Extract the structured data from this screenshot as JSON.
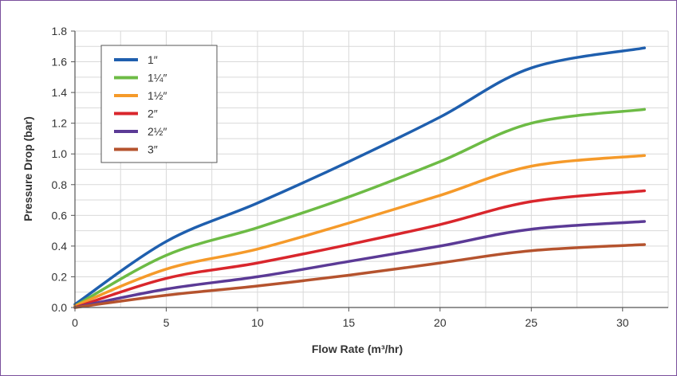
{
  "chart_data": {
    "type": "line",
    "title": "",
    "xlabel": "Flow Rate (m³/hr)",
    "ylabel": "Pressure Drop (bar)",
    "xlim": [
      0,
      32.5
    ],
    "ylim": [
      0,
      1.8
    ],
    "xticks": [
      0,
      5,
      10,
      15,
      20,
      25,
      30
    ],
    "xtick_labels": [
      "0",
      "5",
      "10",
      "15",
      "20",
      "25",
      "30"
    ],
    "yticks": [
      0,
      0.2,
      0.4,
      0.6,
      0.8,
      1.0,
      1.2,
      1.4,
      1.6,
      1.8
    ],
    "ytick_labels": [
      "0.0",
      "0.2",
      "0.4",
      "0.6",
      "0.8",
      "1.0",
      "1.2",
      "1.4",
      "1.6",
      "1.8"
    ],
    "grid": true,
    "legend_position": "top-left",
    "x": [
      0,
      5,
      10,
      15,
      20,
      25,
      31.2
    ],
    "series": [
      {
        "name": "1″",
        "color": "#1f5fae",
        "values": [
          0.02,
          0.43,
          0.68,
          0.95,
          1.24,
          1.56,
          1.69
        ]
      },
      {
        "name": "1¼″",
        "color": "#6dbb45",
        "values": [
          0.01,
          0.34,
          0.52,
          0.72,
          0.95,
          1.2,
          1.29
        ]
      },
      {
        "name": "1½″",
        "color": "#f59a2a",
        "values": [
          0.01,
          0.25,
          0.38,
          0.55,
          0.73,
          0.92,
          0.99
        ]
      },
      {
        "name": "2″",
        "color": "#d9262c",
        "values": [
          0.0,
          0.19,
          0.29,
          0.41,
          0.54,
          0.69,
          0.76
        ]
      },
      {
        "name": "2½″",
        "color": "#5b3a96",
        "values": [
          0.0,
          0.12,
          0.2,
          0.3,
          0.4,
          0.51,
          0.56
        ]
      },
      {
        "name": "3″",
        "color": "#b5532e",
        "values": [
          0.0,
          0.08,
          0.14,
          0.21,
          0.29,
          0.37,
          0.41
        ]
      }
    ]
  }
}
